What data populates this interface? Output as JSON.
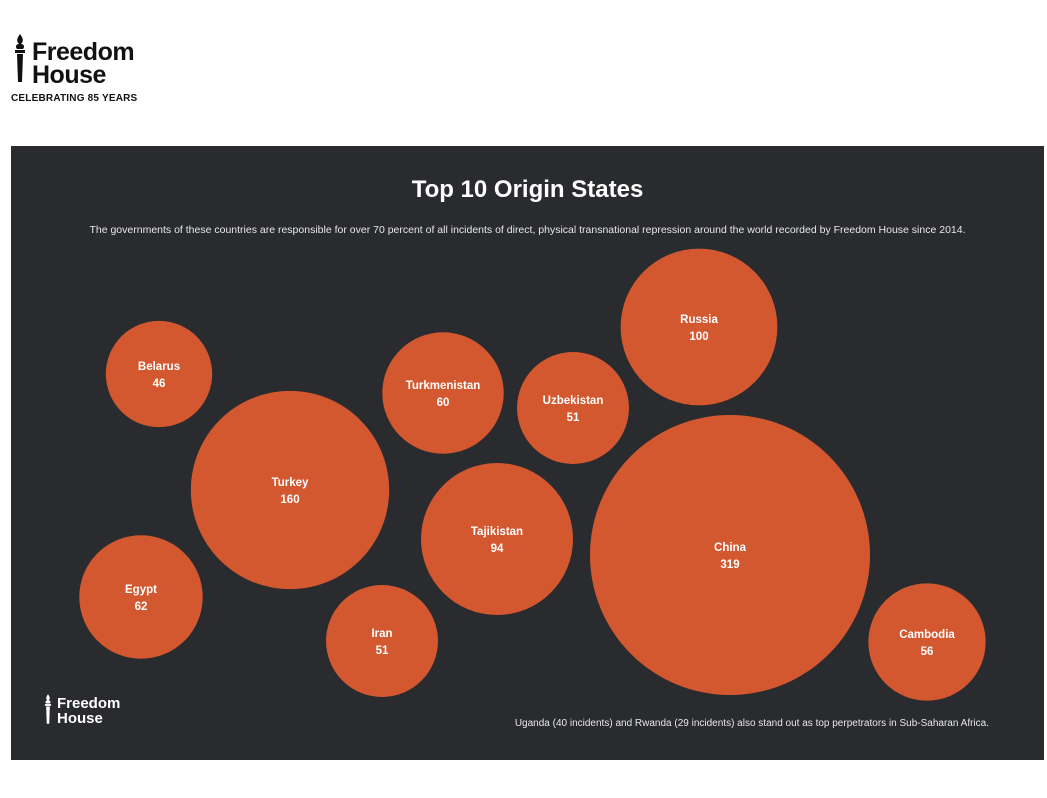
{
  "brand": {
    "line1": "Freedom",
    "line2": "House",
    "tagline": "CELEBRATING 85 YEARS"
  },
  "footer_logo": {
    "line1": "Freedom",
    "line2": "House"
  },
  "colors": {
    "background": "#2a2b2e",
    "bubble": "#d4582f",
    "text": "#ffffff"
  },
  "chart_data": {
    "type": "bubble",
    "title": "Top 10 Origin States",
    "subtitle": "The governments of these countries are responsible for over 70 percent of all incidents of direct, physical transnational repression around the world recorded by Freedom House since 2014.",
    "series": [
      {
        "name": "",
        "values": [
          {
            "country": "China",
            "incidents": 319
          },
          {
            "country": "Turkey",
            "incidents": 160
          },
          {
            "country": "Russia",
            "incidents": 100
          },
          {
            "country": "Tajikistan",
            "incidents": 94
          },
          {
            "country": "Egypt",
            "incidents": 62
          },
          {
            "country": "Turkmenistan",
            "incidents": 60
          },
          {
            "country": "Cambodia",
            "incidents": 56
          },
          {
            "country": "Uzbekistan",
            "incidents": 51
          },
          {
            "country": "Iran",
            "incidents": 51
          },
          {
            "country": "Belarus",
            "incidents": 46
          }
        ]
      }
    ],
    "note": "Uganda (40 incidents) and Rwanda (29 incidents) also stand out as top perpetrators in Sub-Saharan Africa."
  }
}
